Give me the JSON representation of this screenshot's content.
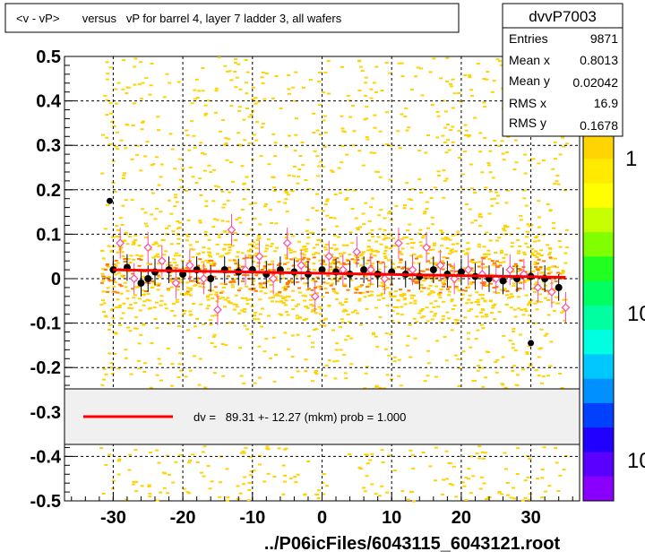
{
  "title": "<v - vP>       versus   vP for barrel 4, layer 7 ladder 3, all wafers",
  "stats": {
    "name": "dvvP7003",
    "rows": [
      {
        "label": "Entries",
        "value": "9871"
      },
      {
        "label": "Mean x",
        "value": "0.8013"
      },
      {
        "label": "Mean y",
        "value": "0.02042"
      },
      {
        "label": "RMS x",
        "value": "16.9"
      },
      {
        "label": "RMS y",
        "value": "0.1678"
      }
    ]
  },
  "fit_legend": "dv =   89.31 +- 12.27 (mkm) prob = 1.000",
  "footer": "../P06icFiles/6043115_6043121.root",
  "palette": {
    "zLabels": [
      "1",
      "10",
      "10"
    ],
    "colors": [
      "#8a00ff",
      "#5a00ff",
      "#2000ff",
      "#0040ff",
      "#0090ff",
      "#00c8ff",
      "#00ffe0",
      "#00ffa0",
      "#00ff60",
      "#20ff20",
      "#80ff00",
      "#c8ff00",
      "#ffff00",
      "#ffea00",
      "#ffd400"
    ]
  },
  "colors": {
    "fit_line": "#ff0000",
    "profile_black": "#000000",
    "profile_pink": "#ff4aa8",
    "scatter_yellow": "#ffd200",
    "scatter_orange": "#ff7a00",
    "legend_bg": "#f0f0f0"
  },
  "chart_data": {
    "type": "scatter",
    "xlim": [
      -37,
      37
    ],
    "ylim": [
      -0.5,
      0.5
    ],
    "xticks": [
      -30,
      -20,
      -10,
      0,
      10,
      20,
      30
    ],
    "yticks": [
      -0.5,
      -0.4,
      -0.3,
      -0.2,
      -0.1,
      0,
      0.1,
      0.2,
      0.3,
      0.4,
      0.5
    ],
    "grid": true,
    "fit_line": {
      "x": [
        -30,
        35
      ],
      "y": [
        0.02,
        0.003
      ]
    },
    "profile_black": {
      "x": [
        -30,
        -28,
        -26,
        -25,
        -24,
        -22,
        -20,
        -18,
        -16,
        -14,
        -12,
        -10,
        -8,
        -6,
        -4,
        -2,
        0,
        2,
        4,
        6,
        8,
        10,
        12,
        14,
        16,
        18,
        20,
        22,
        24,
        26,
        28,
        30,
        32,
        34
      ],
      "y": [
        0.02,
        0.025,
        -0.01,
        0.0,
        0.015,
        0.02,
        0.01,
        0.02,
        0.0,
        0.02,
        0.015,
        0.02,
        0.01,
        0.02,
        0.015,
        0.01,
        0.02,
        0.015,
        0.01,
        0.02,
        0.01,
        0.015,
        0.01,
        0.005,
        0.02,
        0.01,
        0.015,
        0.005,
        0.0,
        -0.005,
        0.0,
        0.005,
        0.0,
        -0.02
      ]
    },
    "profile_pink": {
      "x": [
        -29,
        -27,
        -25,
        -23,
        -21,
        -19,
        -17,
        -15,
        -13,
        -11,
        -9,
        -7,
        -5,
        -3,
        -1,
        1,
        3,
        5,
        7,
        9,
        11,
        13,
        15,
        17,
        19,
        21,
        23,
        25,
        27,
        29,
        31,
        33,
        35
      ],
      "y": [
        0.08,
        0.0,
        0.07,
        0.04,
        -0.01,
        0.03,
        0.0,
        -0.07,
        0.11,
        0.02,
        0.05,
        0.0,
        0.08,
        0.03,
        -0.04,
        0.05,
        0.02,
        0.06,
        0.02,
        0.0,
        0.08,
        0.02,
        0.07,
        0.03,
        0.0,
        0.02,
        0.01,
        0.0,
        0.02,
        0.01,
        -0.02,
        -0.03,
        -0.065
      ]
    },
    "outliers": {
      "x": [
        -30.5,
        30
      ],
      "y": [
        0.175,
        -0.145
      ]
    }
  }
}
